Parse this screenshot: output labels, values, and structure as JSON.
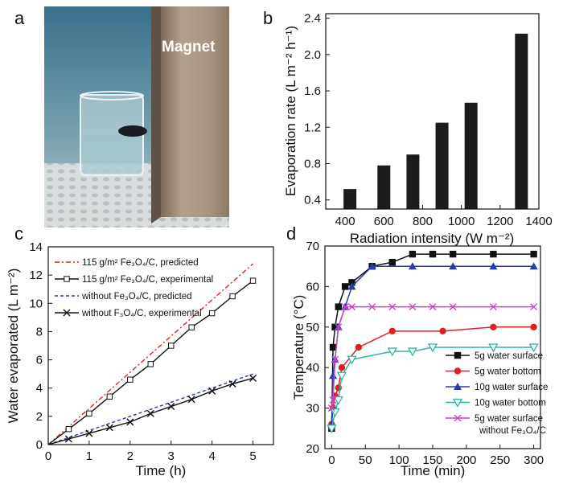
{
  "panel_labels": {
    "a": "a",
    "b": "b",
    "c": "c",
    "d": "d"
  },
  "photo": {
    "magnet_label": "Magnet"
  },
  "colors": {
    "red": "#e02020",
    "blue": "#2a3aa8",
    "teal": "#2fb5a5",
    "magenta": "#cc44cc",
    "black": "#111111"
  },
  "chart_data": [
    {
      "id": "b",
      "type": "bar",
      "title": "",
      "xlabel": "Radiation intensity (W m⁻²)",
      "ylabel": "Evaporation rate (L m⁻² h⁻¹)",
      "x": [
        425,
        600,
        750,
        900,
        1050,
        1310
      ],
      "values": [
        0.52,
        0.78,
        0.9,
        1.25,
        1.47,
        2.23
      ],
      "xlim": [
        300,
        1400
      ],
      "ylim": [
        0.3,
        2.45
      ],
      "xticks": [
        "400",
        "600",
        "800",
        "1000",
        "1200",
        "1400"
      ],
      "yticks": [
        "0.4",
        "0.8",
        "1.2",
        "1.6",
        "2.0",
        "2.4"
      ]
    },
    {
      "id": "c",
      "type": "line",
      "xlabel": "Time (h)",
      "ylabel": "Water evaporated (L m⁻²)",
      "xlim": [
        0,
        5.5
      ],
      "ylim": [
        0,
        14
      ],
      "xticks": [
        "0",
        "1",
        "2",
        "3",
        "4",
        "5"
      ],
      "yticks": [
        "0",
        "2",
        "4",
        "6",
        "8",
        "10",
        "12",
        "14"
      ],
      "legend_position": "top-left",
      "series": [
        {
          "name": "115 g/m² Fe₃O₄/C, predicted",
          "style": "dash-dot",
          "color": "#e02020",
          "marker": "none",
          "x": [
            0,
            5
          ],
          "y": [
            0,
            12.8
          ]
        },
        {
          "name": "115 g/m² Fe₃O₄/C, experimental",
          "style": "solid",
          "color": "#111111",
          "marker": "square-open",
          "x": [
            0,
            0.5,
            1,
            1.5,
            2,
            2.5,
            3,
            3.5,
            4,
            4.5,
            5
          ],
          "y": [
            0,
            1.1,
            2.2,
            3.4,
            4.6,
            5.7,
            7.0,
            8.3,
            9.3,
            10.5,
            11.6
          ]
        },
        {
          "name": "without Fe₃O₄/C, predicted",
          "style": "dash",
          "color": "#2a3aa8",
          "marker": "none",
          "x": [
            0,
            5
          ],
          "y": [
            0,
            5.0
          ]
        },
        {
          "name": "without F₃O₄/C, experimental",
          "style": "solid",
          "color": "#111111",
          "marker": "x",
          "x": [
            0,
            0.5,
            1,
            1.5,
            2,
            2.5,
            3,
            3.5,
            4,
            4.5,
            5
          ],
          "y": [
            0,
            0.4,
            0.8,
            1.2,
            1.6,
            2.2,
            2.7,
            3.2,
            3.8,
            4.3,
            4.7
          ]
        }
      ]
    },
    {
      "id": "d",
      "type": "line",
      "xlabel": "Time (min)",
      "ylabel": "Temperature (°C)",
      "xlim": [
        -10,
        310
      ],
      "ylim": [
        20,
        70
      ],
      "xticks": [
        "0",
        "50",
        "100",
        "150",
        "200",
        "250",
        "300"
      ],
      "yticks": [
        "20",
        "30",
        "40",
        "50",
        "60",
        "70"
      ],
      "legend_position": "bottom-right",
      "series": [
        {
          "name": "5g water surface",
          "color": "#111111",
          "marker": "square",
          "x": [
            0,
            2,
            5,
            10,
            20,
            30,
            60,
            90,
            120,
            150,
            180,
            240,
            300
          ],
          "y": [
            25,
            45,
            50,
            55,
            60,
            61,
            65,
            66,
            68,
            68,
            68,
            68,
            68
          ]
        },
        {
          "name": "5g water bottom",
          "color": "#e02020",
          "marker": "circle",
          "x": [
            0,
            2,
            5,
            10,
            15,
            40,
            90,
            165,
            240,
            300
          ],
          "y": [
            26,
            30,
            33,
            35,
            40,
            45,
            49,
            49,
            50,
            50
          ]
        },
        {
          "name": "10g water surface",
          "color": "#2a3aa8",
          "marker": "triangle-up",
          "x": [
            0,
            2,
            5,
            10,
            20,
            30,
            60,
            120,
            180,
            240,
            300
          ],
          "y": [
            26,
            38,
            42,
            50,
            55,
            60,
            65,
            65,
            65,
            65,
            65
          ]
        },
        {
          "name": "10g water bottom",
          "color": "#2fb5a5",
          "marker": "triangle-down-open",
          "x": [
            0,
            5,
            10,
            15,
            30,
            90,
            120,
            150,
            240,
            300
          ],
          "y": [
            25,
            29,
            32,
            38,
            42,
            44,
            44,
            45,
            45,
            45
          ]
        },
        {
          "name": "5g water surface",
          "name2": "without Fe₃O₄/C",
          "color": "#cc44cc",
          "marker": "x",
          "x": [
            0,
            2,
            5,
            10,
            20,
            30,
            60,
            90,
            120,
            150,
            180,
            240,
            300
          ],
          "y": [
            30,
            32,
            42,
            50,
            55,
            55,
            55,
            55,
            55,
            55,
            55,
            55,
            55
          ]
        }
      ]
    }
  ]
}
